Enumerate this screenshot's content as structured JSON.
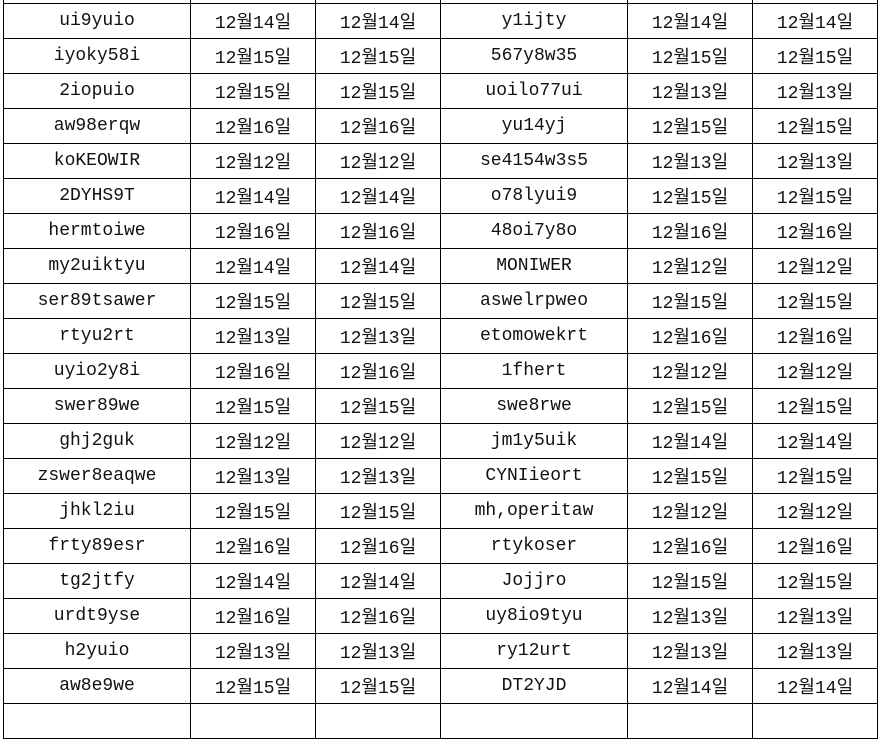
{
  "rows": [
    [
      "ui9yuio",
      "12월14일",
      "12월14일",
      "y1ijty",
      "12월14일",
      "12월14일"
    ],
    [
      "iyoky58i",
      "12월15일",
      "12월15일",
      "567y8w35",
      "12월15일",
      "12월15일"
    ],
    [
      "2iopuio",
      "12월15일",
      "12월15일",
      "uoilo77ui",
      "12월13일",
      "12월13일"
    ],
    [
      "aw98erqw",
      "12월16일",
      "12월16일",
      "yu14yj",
      "12월15일",
      "12월15일"
    ],
    [
      "koKEOWIR",
      "12월12일",
      "12월12일",
      "se4154w3s5",
      "12월13일",
      "12월13일"
    ],
    [
      "2DYHS9T",
      "12월14일",
      "12월14일",
      "o78lyui9",
      "12월15일",
      "12월15일"
    ],
    [
      "hermtoiwe",
      "12월16일",
      "12월16일",
      "48oi7y8o",
      "12월16일",
      "12월16일"
    ],
    [
      "my2uiktyu",
      "12월14일",
      "12월14일",
      "MONIWER",
      "12월12일",
      "12월12일"
    ],
    [
      "ser89tsawer",
      "12월15일",
      "12월15일",
      "aswelrpweo",
      "12월15일",
      "12월15일"
    ],
    [
      "rtyu2rt",
      "12월13일",
      "12월13일",
      "etomowekrt",
      "12월16일",
      "12월16일"
    ],
    [
      "uyio2y8i",
      "12월16일",
      "12월16일",
      "1fhert",
      "12월12일",
      "12월12일"
    ],
    [
      "swer89we",
      "12월15일",
      "12월15일",
      "swe8rwe",
      "12월15일",
      "12월15일"
    ],
    [
      "ghj2guk",
      "12월12일",
      "12월12일",
      "jm1y5uik",
      "12월14일",
      "12월14일"
    ],
    [
      "zswer8eaqwe",
      "12월13일",
      "12월13일",
      "CYNIieort",
      "12월15일",
      "12월15일"
    ],
    [
      "jhkl2iu",
      "12월15일",
      "12월15일",
      "mh,operitaw",
      "12월12일",
      "12월12일"
    ],
    [
      "frty89esr",
      "12월16일",
      "12월16일",
      "rtykoser",
      "12월16일",
      "12월16일"
    ],
    [
      "tg2jtfy",
      "12월14일",
      "12월14일",
      "Jojjro",
      "12월15일",
      "12월15일"
    ],
    [
      "urdt9yse",
      "12월16일",
      "12월16일",
      "uy8io9tyu",
      "12월13일",
      "12월13일"
    ],
    [
      "h2yuio",
      "12월13일",
      "12월13일",
      "ry12urt",
      "12월13일",
      "12월13일"
    ],
    [
      "aw8e9we",
      "12월15일",
      "12월15일",
      "DT2YJD",
      "12월14일",
      "12월14일"
    ]
  ]
}
